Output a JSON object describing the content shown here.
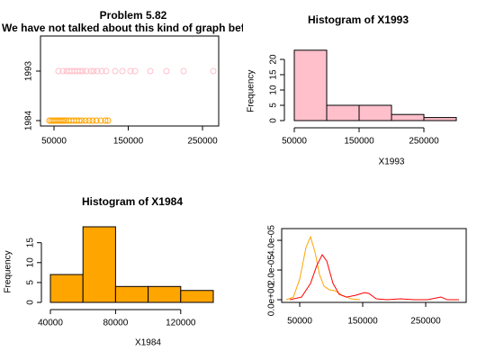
{
  "chart_data": [
    {
      "type": "scatter",
      "title": "Problem 5.82",
      "subtitle": "We have not talked about this kind of graph before",
      "y_categories": [
        "1984",
        "1993"
      ],
      "series": [
        {
          "color": "orange",
          "values": [
            43900,
            46400,
            48800,
            51200,
            53600,
            56000,
            58500,
            60900,
            63300,
            65800,
            69400,
            73000,
            76700,
            80300,
            83900,
            87600,
            92400,
            97300,
            102100,
            107000,
            113000,
            119100,
            122700
          ]
        },
        {
          "color": "pink",
          "values": [
            56000,
            62100,
            67000,
            70600,
            74200,
            77900,
            81500,
            85200,
            88800,
            93600,
            99700,
            103300,
            108200,
            114200,
            120300,
            132400,
            142100,
            153000,
            159100,
            179700,
            201500,
            224500,
            264500
          ]
        }
      ],
      "xlim": [
        31800,
        271800
      ],
      "xticks": [
        50000,
        150000,
        250000
      ]
    },
    {
      "type": "histogram",
      "title": "Histogram of X1993",
      "x_label": "X1993",
      "y_label": "Frequency",
      "color": "pink",
      "bins": [
        50000,
        100000,
        150000,
        200000,
        250000,
        300000
      ],
      "values": [
        23,
        5,
        5,
        2,
        1
      ],
      "xlim": [
        50000,
        300000
      ],
      "xticks": [
        50000,
        150000,
        250000
      ],
      "ylim": [
        0,
        24
      ],
      "yticks": [
        0,
        5,
        10,
        15,
        20
      ]
    },
    {
      "type": "histogram",
      "title": "Histogram of X1984",
      "x_label": "X1984",
      "y_label": "Frequency",
      "color": "orange",
      "bins": [
        40000,
        60000,
        80000,
        100000,
        120000,
        140000
      ],
      "values": [
        7,
        19,
        4,
        4,
        3
      ],
      "xlim": [
        40000,
        140000
      ],
      "xticks": [
        40000,
        80000,
        120000
      ],
      "ylim": [
        0,
        19
      ],
      "yticks": [
        0,
        5,
        10,
        15
      ]
    },
    {
      "type": "line",
      "series": [
        {
          "color": "orange",
          "x": [
            28600,
            40000,
            50000,
            60000,
            67100,
            74300,
            81400,
            88600,
            97100,
            105700,
            117100,
            131400,
            145700
          ],
          "values": [
            0,
            1.8e-06,
            1.39e-05,
            3.52e-05,
            4.24e-05,
            3.21e-05,
            1.7e-05,
            9.1e-06,
            6.7e-06,
            6.1e-06,
            3e-06,
            6e-07,
            0
          ]
        },
        {
          "color": "red",
          "x": [
            34300,
            52900,
            67100,
            77100,
            85700,
            92900,
            102900,
            112900,
            124300,
            138600,
            152900,
            160000,
            171400,
            188600,
            210000,
            231400,
            252900,
            274300,
            284300,
            302900
          ],
          "values": [
            0,
            1.8e-06,
            1.09e-05,
            2.3e-05,
            3.03e-05,
            2.61e-05,
            1.09e-05,
            3.6e-06,
            1.8e-06,
            3e-06,
            4.8e-06,
            4.2e-06,
            6e-07,
            0,
            6e-07,
            0,
            0,
            1.8e-06,
            0,
            0
          ]
        }
      ],
      "xlim": [
        21400,
        314300
      ],
      "xticks": [
        50000,
        150000,
        250000
      ],
      "ylim": [
        -1.8e-06,
        4.79e-05
      ],
      "yticks": [
        {
          "value": 0,
          "label": "0.0e+00"
        },
        {
          "value": 2e-05,
          "label": "2.0e-05"
        },
        {
          "value": 4e-05,
          "label": "4.0e-05"
        }
      ]
    }
  ]
}
